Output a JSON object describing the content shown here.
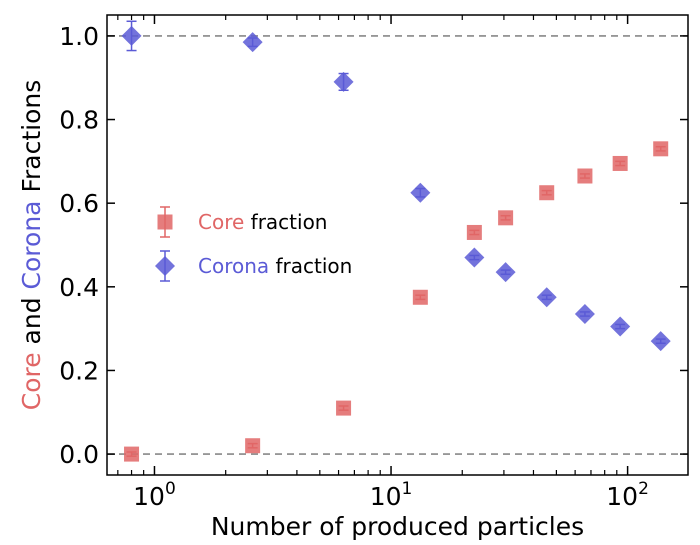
{
  "chart_data": {
    "type": "scatter",
    "xscale": "log",
    "xlim": [
      0.63,
      180
    ],
    "ylim": [
      -0.05,
      1.05
    ],
    "reference_lines_y": [
      0.0,
      1.0
    ],
    "xlabel": "Number of produced particles",
    "ylabel_parts": [
      {
        "text": "Core",
        "color": "#e06666"
      },
      {
        "text": " and ",
        "color": "#000000"
      },
      {
        "text": "Corona",
        "color": "#5b5bd6"
      },
      {
        "text": " Fractions",
        "color": "#000000"
      }
    ],
    "x_ticks": [
      {
        "value": 1,
        "base": "10",
        "exp": "0"
      },
      {
        "value": 10,
        "base": "10",
        "exp": "1"
      },
      {
        "value": 100,
        "base": "10",
        "exp": "2"
      }
    ],
    "y_ticks": [
      {
        "value": 0.0,
        "label": "0.0"
      },
      {
        "value": 0.2,
        "label": "0.2"
      },
      {
        "value": 0.4,
        "label": "0.4"
      },
      {
        "value": 0.6,
        "label": "0.6"
      },
      {
        "value": 0.8,
        "label": "0.8"
      },
      {
        "value": 1.0,
        "label": "1.0"
      }
    ],
    "legend_placement": "center-left",
    "series": [
      {
        "name_colored": "Core",
        "name_rest": " fraction",
        "marker": "square",
        "color": "#e06666",
        "points": [
          {
            "x": 0.8,
            "y": 0.0,
            "err": 0.005
          },
          {
            "x": 2.6,
            "y": 0.02,
            "err": 0.005
          },
          {
            "x": 6.3,
            "y": 0.11,
            "err": 0.005
          },
          {
            "x": 13.3,
            "y": 0.375,
            "err": 0.005
          },
          {
            "x": 22.5,
            "y": 0.53,
            "err": 0.005
          },
          {
            "x": 30.5,
            "y": 0.565,
            "err": 0.005
          },
          {
            "x": 45.5,
            "y": 0.625,
            "err": 0.005
          },
          {
            "x": 66.0,
            "y": 0.665,
            "err": 0.005
          },
          {
            "x": 93.0,
            "y": 0.695,
            "err": 0.005
          },
          {
            "x": 138.0,
            "y": 0.73,
            "err": 0.005
          }
        ]
      },
      {
        "name_colored": "Corona",
        "name_rest": " fraction",
        "marker": "diamond",
        "color": "#5b5bd6",
        "points": [
          {
            "x": 0.8,
            "y": 1.0,
            "err": 0.035
          },
          {
            "x": 2.6,
            "y": 0.985,
            "err": 0.01
          },
          {
            "x": 6.3,
            "y": 0.89,
            "err": 0.02
          },
          {
            "x": 13.3,
            "y": 0.625,
            "err": 0.01
          },
          {
            "x": 22.5,
            "y": 0.47,
            "err": 0.005
          },
          {
            "x": 30.5,
            "y": 0.435,
            "err": 0.005
          },
          {
            "x": 45.5,
            "y": 0.375,
            "err": 0.005
          },
          {
            "x": 66.0,
            "y": 0.335,
            "err": 0.005
          },
          {
            "x": 93.0,
            "y": 0.305,
            "err": 0.005
          },
          {
            "x": 138.0,
            "y": 0.27,
            "err": 0.005
          }
        ]
      }
    ]
  }
}
